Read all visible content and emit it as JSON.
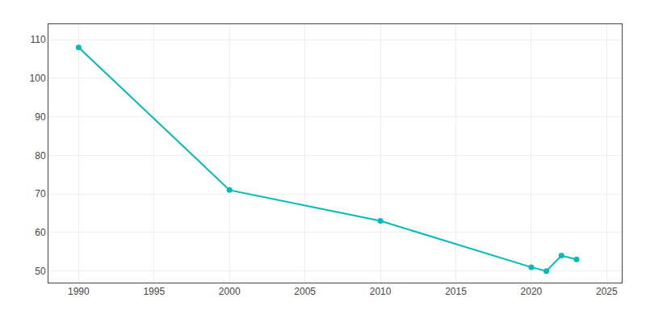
{
  "chart_data": {
    "type": "line",
    "x": [
      1990,
      2000,
      2010,
      2020,
      2021,
      2022,
      2023
    ],
    "values": [
      108,
      71,
      63,
      51,
      50,
      54,
      53
    ],
    "color": "#00BABA",
    "marker": "circle",
    "xlim": [
      1988,
      2026
    ],
    "ylim": [
      47,
      114
    ],
    "xticks": [
      1990,
      1995,
      2000,
      2005,
      2010,
      2015,
      2020,
      2025
    ],
    "yticks": [
      50,
      60,
      70,
      80,
      90,
      100,
      110
    ],
    "grid": true
  }
}
